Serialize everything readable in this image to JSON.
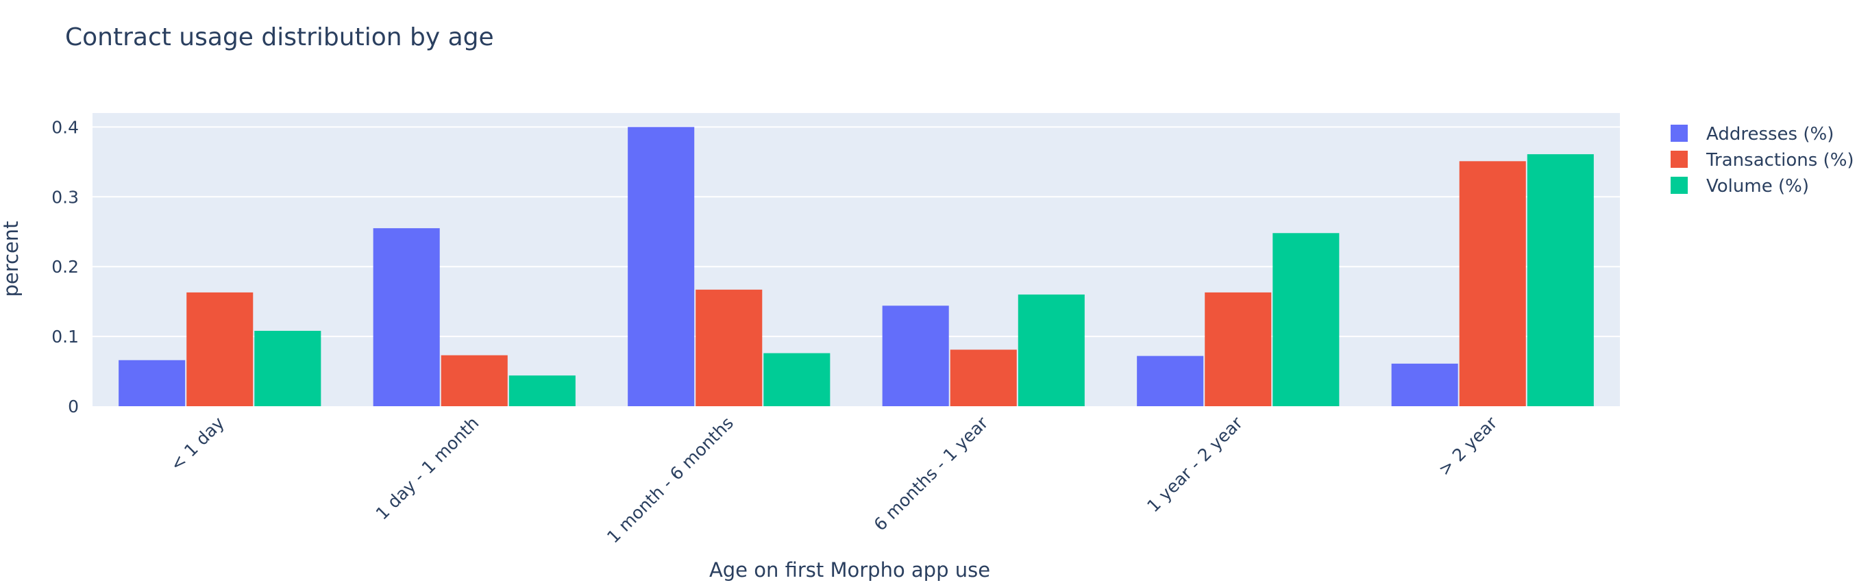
{
  "chart_data": {
    "type": "bar",
    "title": "Contract usage distribution by age",
    "xlabel": "Age on first Morpho app use",
    "ylabel": "percent",
    "categories": [
      "< 1 day",
      "1 day - 1 month",
      "1 month - 6 months",
      "6 months - 1 year",
      "1 year - 2 year",
      "> 2 year"
    ],
    "series": [
      {
        "name": "Addresses (%)",
        "color": "#636efa",
        "values": [
          0.066,
          0.255,
          0.4,
          0.144,
          0.072,
          0.061
        ]
      },
      {
        "name": "Transactions (%)",
        "color": "#ef553b",
        "values": [
          0.163,
          0.073,
          0.167,
          0.081,
          0.163,
          0.351
        ]
      },
      {
        "name": "Volume (%)",
        "color": "#00cc96",
        "values": [
          0.108,
          0.044,
          0.076,
          0.16,
          0.248,
          0.361
        ]
      }
    ],
    "ylim": [
      0,
      0.42
    ],
    "yticks": [
      0,
      0.1,
      0.2,
      0.3,
      0.4
    ],
    "ytick_labels": [
      "0",
      "0.1",
      "0.2",
      "0.3",
      "0.4"
    ],
    "grid": true,
    "legend_position": "top-right",
    "plot_background": "#e5ecf6"
  }
}
